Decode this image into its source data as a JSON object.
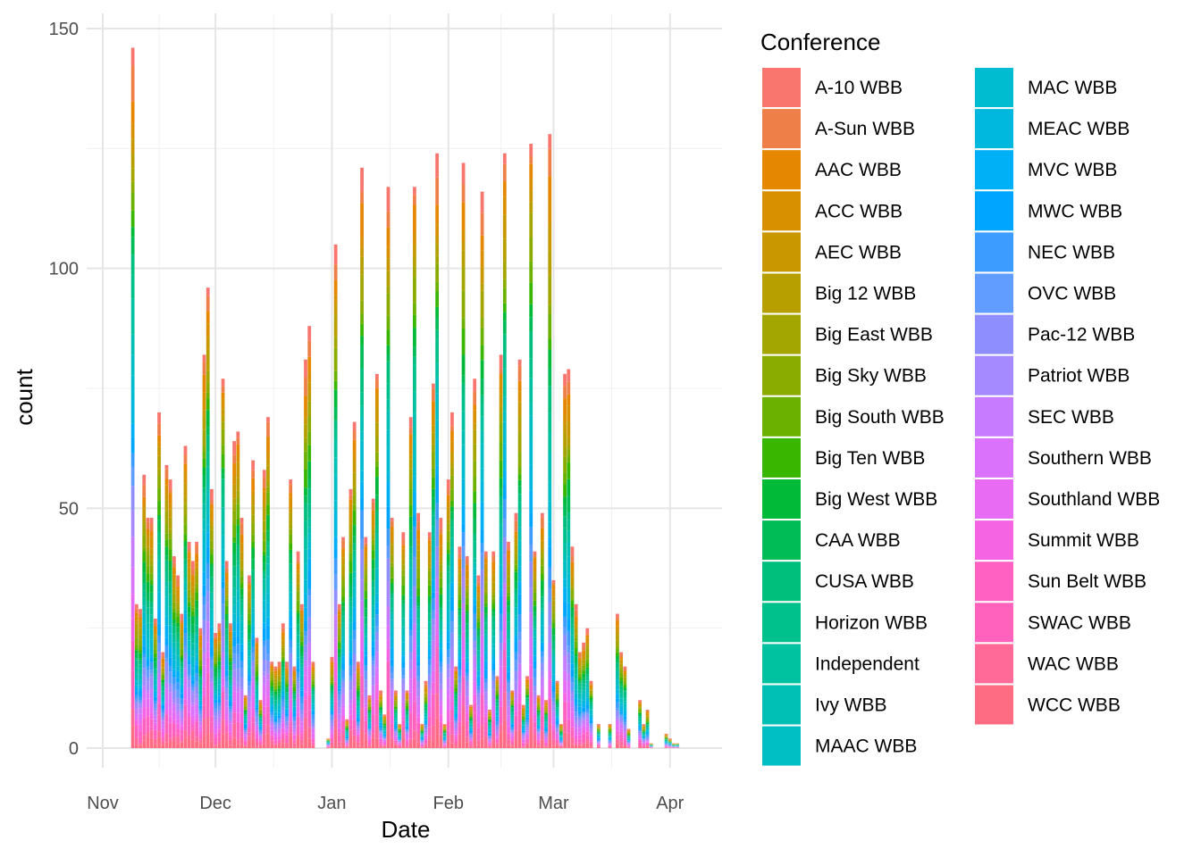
{
  "chart_data": {
    "type": "bar",
    "stacked": true,
    "xlabel": "Date",
    "ylabel": "count",
    "ylim": [
      0,
      150
    ],
    "y_ticks": [
      0,
      50,
      100,
      150
    ],
    "x_range": [
      "2021-11-01",
      "2022-04-07"
    ],
    "x_ticks": [
      {
        "date": "2021-11-01",
        "label": "Nov"
      },
      {
        "date": "2021-12-01",
        "label": "Dec"
      },
      {
        "date": "2022-01-01",
        "label": "Jan"
      },
      {
        "date": "2022-02-01",
        "label": "Feb"
      },
      {
        "date": "2022-03-01",
        "label": "Mar"
      },
      {
        "date": "2022-04-01",
        "label": "Apr"
      }
    ],
    "grid": true,
    "legend_position": "right",
    "legend_title": "Conference",
    "series": [
      {
        "name": "A-10 WBB",
        "color": "#F8766D"
      },
      {
        "name": "A-Sun WBB",
        "color": "#EF7F49"
      },
      {
        "name": "AAC WBB",
        "color": "#E58700"
      },
      {
        "name": "ACC WBB",
        "color": "#D89000"
      },
      {
        "name": "AEC WBB",
        "color": "#C99800"
      },
      {
        "name": "Big 12 WBB",
        "color": "#B79F00"
      },
      {
        "name": "Big East WBB",
        "color": "#A3A500"
      },
      {
        "name": "Big Sky WBB",
        "color": "#8AAB00"
      },
      {
        "name": "Big South WBB",
        "color": "#6BB100"
      },
      {
        "name": "Big Ten WBB",
        "color": "#39B600"
      },
      {
        "name": "Big West WBB",
        "color": "#00BA38"
      },
      {
        "name": "CAA WBB",
        "color": "#00BC56"
      },
      {
        "name": "CUSA WBB",
        "color": "#00BF7D"
      },
      {
        "name": "Horizon WBB",
        "color": "#00C08B"
      },
      {
        "name": "Independent",
        "color": "#00C1A0"
      },
      {
        "name": "Ivy WBB",
        "color": "#00BFB4"
      },
      {
        "name": "MAAC WBB",
        "color": "#00BFC4"
      },
      {
        "name": "MAC WBB",
        "color": "#00BCD0"
      },
      {
        "name": "MEAC WBB",
        "color": "#00B8DE"
      },
      {
        "name": "MVC WBB",
        "color": "#00B0F6"
      },
      {
        "name": "MWC WBB",
        "color": "#00A5FF"
      },
      {
        "name": "NEC WBB",
        "color": "#3D9CFF"
      },
      {
        "name": "OVC WBB",
        "color": "#619CFF"
      },
      {
        "name": "Pac-12 WBB",
        "color": "#8F8EFF"
      },
      {
        "name": "Patriot WBB",
        "color": "#A58AFF"
      },
      {
        "name": "SEC WBB",
        "color": "#C77CFF"
      },
      {
        "name": "Southern WBB",
        "color": "#DB72FB"
      },
      {
        "name": "Southland WBB",
        "color": "#E76BF3"
      },
      {
        "name": "Summit WBB",
        "color": "#F564E3"
      },
      {
        "name": "Sun Belt WBB",
        "color": "#FF61C3"
      },
      {
        "name": "SWAC WBB",
        "color": "#FF62BC"
      },
      {
        "name": "WAC WBB",
        "color": "#FF6A98"
      },
      {
        "name": "WCC WBB",
        "color": "#FD6C82"
      }
    ],
    "daily_totals": [
      {
        "date": "2021-11-09",
        "total": 146
      },
      {
        "date": "2021-11-10",
        "total": 30
      },
      {
        "date": "2021-11-11",
        "total": 29
      },
      {
        "date": "2021-11-12",
        "total": 57
      },
      {
        "date": "2021-11-13",
        "total": 48
      },
      {
        "date": "2021-11-14",
        "total": 48
      },
      {
        "date": "2021-11-15",
        "total": 27
      },
      {
        "date": "2021-11-16",
        "total": 70
      },
      {
        "date": "2021-11-17",
        "total": 20
      },
      {
        "date": "2021-11-18",
        "total": 59
      },
      {
        "date": "2021-11-19",
        "total": 56
      },
      {
        "date": "2021-11-20",
        "total": 40
      },
      {
        "date": "2021-11-21",
        "total": 36
      },
      {
        "date": "2021-11-22",
        "total": 28
      },
      {
        "date": "2021-11-23",
        "total": 63
      },
      {
        "date": "2021-11-24",
        "total": 43
      },
      {
        "date": "2021-11-25",
        "total": 39
      },
      {
        "date": "2021-11-26",
        "total": 43
      },
      {
        "date": "2021-11-27",
        "total": 25
      },
      {
        "date": "2021-11-28",
        "total": 82
      },
      {
        "date": "2021-11-29",
        "total": 96
      },
      {
        "date": "2021-11-30",
        "total": 54
      },
      {
        "date": "2021-12-01",
        "total": 24
      },
      {
        "date": "2021-12-02",
        "total": 26
      },
      {
        "date": "2021-12-03",
        "total": 77
      },
      {
        "date": "2021-12-04",
        "total": 39
      },
      {
        "date": "2021-12-05",
        "total": 26
      },
      {
        "date": "2021-12-06",
        "total": 64
      },
      {
        "date": "2021-12-07",
        "total": 66
      },
      {
        "date": "2021-12-08",
        "total": 48
      },
      {
        "date": "2021-12-09",
        "total": 11
      },
      {
        "date": "2021-12-10",
        "total": 36
      },
      {
        "date": "2021-12-11",
        "total": 60
      },
      {
        "date": "2021-12-12",
        "total": 23
      },
      {
        "date": "2021-12-13",
        "total": 10
      },
      {
        "date": "2021-12-14",
        "total": 58
      },
      {
        "date": "2021-12-15",
        "total": 69
      },
      {
        "date": "2021-12-16",
        "total": 18
      },
      {
        "date": "2021-12-17",
        "total": 17
      },
      {
        "date": "2021-12-18",
        "total": 18
      },
      {
        "date": "2021-12-19",
        "total": 26
      },
      {
        "date": "2021-12-20",
        "total": 18
      },
      {
        "date": "2021-12-21",
        "total": 56
      },
      {
        "date": "2021-12-22",
        "total": 17
      },
      {
        "date": "2021-12-23",
        "total": 41
      },
      {
        "date": "2021-12-24",
        "total": 30
      },
      {
        "date": "2021-12-25",
        "total": 81
      },
      {
        "date": "2021-12-26",
        "total": 88
      },
      {
        "date": "2021-12-27",
        "total": 18
      },
      {
        "date": "2021-12-31",
        "total": 2
      },
      {
        "date": "2022-01-01",
        "total": 19
      },
      {
        "date": "2022-01-02",
        "total": 105
      },
      {
        "date": "2022-01-03",
        "total": 30
      },
      {
        "date": "2022-01-04",
        "total": 44
      },
      {
        "date": "2022-01-05",
        "total": 6
      },
      {
        "date": "2022-01-06",
        "total": 54
      },
      {
        "date": "2022-01-07",
        "total": 68
      },
      {
        "date": "2022-01-08",
        "total": 18
      },
      {
        "date": "2022-01-09",
        "total": 121
      },
      {
        "date": "2022-01-10",
        "total": 44
      },
      {
        "date": "2022-01-11",
        "total": 11
      },
      {
        "date": "2022-01-12",
        "total": 52
      },
      {
        "date": "2022-01-13",
        "total": 78
      },
      {
        "date": "2022-01-14",
        "total": 12
      },
      {
        "date": "2022-01-15",
        "total": 7
      },
      {
        "date": "2022-01-16",
        "total": 117
      },
      {
        "date": "2022-01-17",
        "total": 48
      },
      {
        "date": "2022-01-18",
        "total": 12
      },
      {
        "date": "2022-01-19",
        "total": 5
      },
      {
        "date": "2022-01-20",
        "total": 45
      },
      {
        "date": "2022-01-21",
        "total": 12
      },
      {
        "date": "2022-01-22",
        "total": 69
      },
      {
        "date": "2022-01-23",
        "total": 117
      },
      {
        "date": "2022-01-24",
        "total": 49
      },
      {
        "date": "2022-01-25",
        "total": 5
      },
      {
        "date": "2022-01-26",
        "total": 14
      },
      {
        "date": "2022-01-27",
        "total": 45
      },
      {
        "date": "2022-01-28",
        "total": 76
      },
      {
        "date": "2022-01-29",
        "total": 124
      },
      {
        "date": "2022-01-30",
        "total": 48
      },
      {
        "date": "2022-01-31",
        "total": 5
      },
      {
        "date": "2022-02-01",
        "total": 56
      },
      {
        "date": "2022-02-02",
        "total": 70
      },
      {
        "date": "2022-02-03",
        "total": 17
      },
      {
        "date": "2022-02-04",
        "total": 42
      },
      {
        "date": "2022-02-05",
        "total": 122
      },
      {
        "date": "2022-02-06",
        "total": 40
      },
      {
        "date": "2022-02-07",
        "total": 9
      },
      {
        "date": "2022-02-08",
        "total": 77
      },
      {
        "date": "2022-02-09",
        "total": 36
      },
      {
        "date": "2022-02-10",
        "total": 116
      },
      {
        "date": "2022-02-11",
        "total": 41
      },
      {
        "date": "2022-02-12",
        "total": 8
      },
      {
        "date": "2022-02-13",
        "total": 41
      },
      {
        "date": "2022-02-14",
        "total": 15
      },
      {
        "date": "2022-02-15",
        "total": 82
      },
      {
        "date": "2022-02-16",
        "total": 124
      },
      {
        "date": "2022-02-17",
        "total": 43
      },
      {
        "date": "2022-02-18",
        "total": 12
      },
      {
        "date": "2022-02-19",
        "total": 49
      },
      {
        "date": "2022-02-20",
        "total": 81
      },
      {
        "date": "2022-02-21",
        "total": 9
      },
      {
        "date": "2022-02-22",
        "total": 15
      },
      {
        "date": "2022-02-23",
        "total": 126
      },
      {
        "date": "2022-02-24",
        "total": 41
      },
      {
        "date": "2022-02-25",
        "total": 11
      },
      {
        "date": "2022-02-26",
        "total": 49
      },
      {
        "date": "2022-02-27",
        "total": 10
      },
      {
        "date": "2022-02-28",
        "total": 128
      },
      {
        "date": "2022-03-01",
        "total": 35
      },
      {
        "date": "2022-03-02",
        "total": 14
      },
      {
        "date": "2022-03-03",
        "total": 5
      },
      {
        "date": "2022-03-04",
        "total": 78
      },
      {
        "date": "2022-03-05",
        "total": 79
      },
      {
        "date": "2022-03-06",
        "total": 42
      },
      {
        "date": "2022-03-07",
        "total": 30
      },
      {
        "date": "2022-03-08",
        "total": 20
      },
      {
        "date": "2022-03-09",
        "total": 22
      },
      {
        "date": "2022-03-10",
        "total": 25
      },
      {
        "date": "2022-03-11",
        "total": 14
      },
      {
        "date": "2022-03-13",
        "total": 5
      },
      {
        "date": "2022-03-16",
        "total": 5
      },
      {
        "date": "2022-03-18",
        "total": 28
      },
      {
        "date": "2022-03-19",
        "total": 20
      },
      {
        "date": "2022-03-20",
        "total": 17
      },
      {
        "date": "2022-03-21",
        "total": 4
      },
      {
        "date": "2022-03-24",
        "total": 10
      },
      {
        "date": "2022-03-25",
        "total": 5
      },
      {
        "date": "2022-03-26",
        "total": 8
      },
      {
        "date": "2022-03-27",
        "total": 1
      },
      {
        "date": "2022-03-31",
        "total": 3
      },
      {
        "date": "2022-04-01",
        "total": 2
      },
      {
        "date": "2022-04-02",
        "total": 1
      },
      {
        "date": "2022-04-03",
        "total": 1
      }
    ]
  }
}
